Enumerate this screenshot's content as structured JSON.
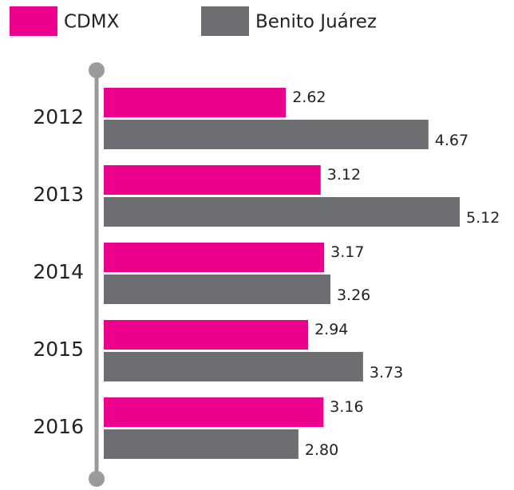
{
  "chart_data": {
    "type": "bar",
    "orientation": "horizontal",
    "categories": [
      "2012",
      "2013",
      "2014",
      "2015",
      "2016"
    ],
    "series": [
      {
        "name": "CDMX",
        "color": "#ec008c",
        "values": [
          2.62,
          3.12,
          3.17,
          2.94,
          3.16
        ]
      },
      {
        "name": "Benito Juárez",
        "color": "#6d6e71",
        "values": [
          4.67,
          5.12,
          3.26,
          3.73,
          2.8
        ],
        "value_labels": [
          "4.67",
          "5.12",
          "3.26",
          "3.73",
          "2.80"
        ]
      }
    ]
  }
}
